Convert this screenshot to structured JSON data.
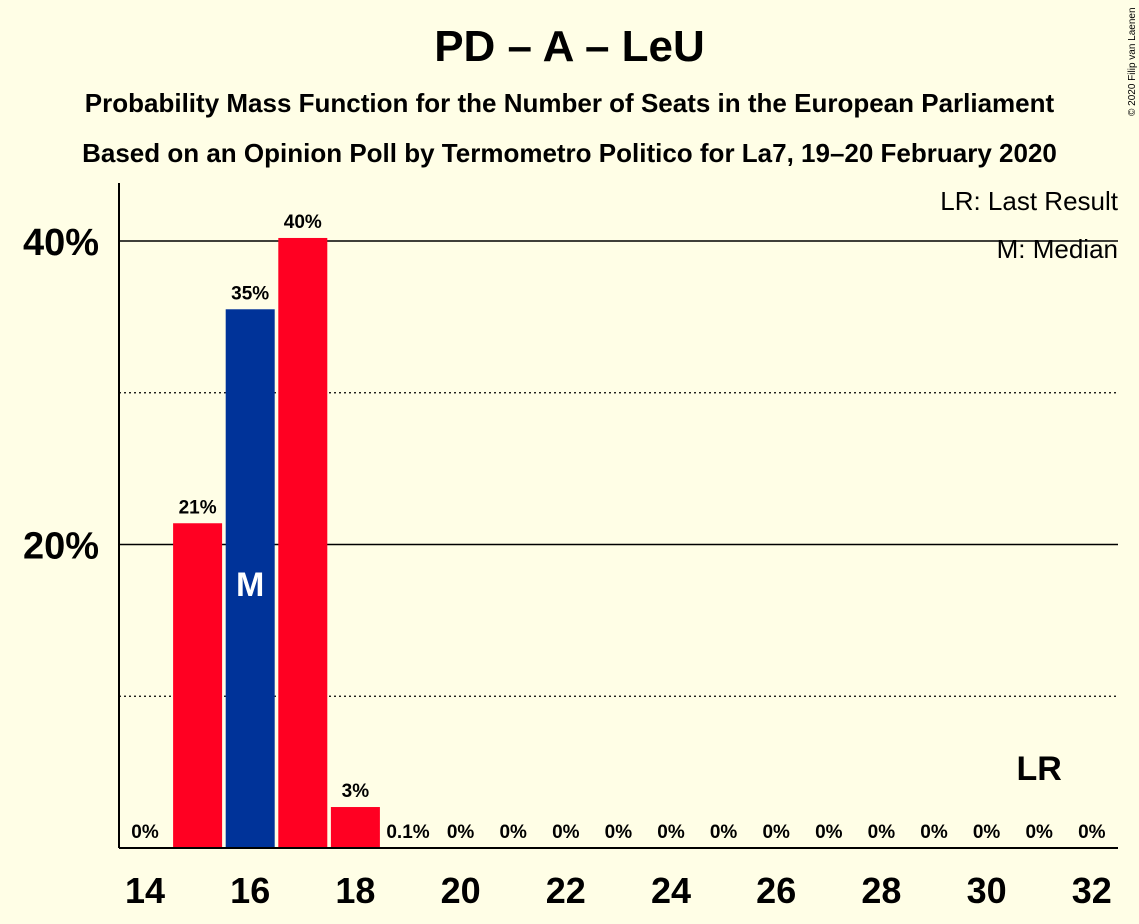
{
  "title": "PD – A – LeU",
  "subtitle1": "Probability Mass Function for the Number of Seats in the European Parliament",
  "subtitle2": "Based on an Opinion Poll by Termometro Politico for La7, 19–20 February 2020",
  "copyright": "© 2020 Filip van Laenen",
  "legend": {
    "lr": "LR: Last Result",
    "median": "M: Median"
  },
  "colors": {
    "background": "#FFFEE6",
    "primary": "#FF0022",
    "median": "#003399",
    "text": "#000000"
  },
  "chart_data": {
    "type": "bar",
    "xlim": [
      14,
      32
    ],
    "ylim": [
      0,
      0.44
    ],
    "x_ticks": [
      14,
      16,
      18,
      20,
      22,
      24,
      26,
      28,
      30,
      32
    ],
    "y_ticks": [
      {
        "value": 0.2,
        "label": "20%"
      },
      {
        "value": 0.4,
        "label": "40%"
      }
    ],
    "minor_grid": [
      0.1,
      0.3
    ],
    "bars": [
      {
        "seats": 14,
        "value": 0.0,
        "label": "0%"
      },
      {
        "seats": 15,
        "value": 0.214,
        "label": "21%"
      },
      {
        "seats": 16,
        "value": 0.355,
        "label": "35%",
        "median": true
      },
      {
        "seats": 17,
        "value": 0.402,
        "label": "40%"
      },
      {
        "seats": 18,
        "value": 0.027,
        "label": "3%"
      },
      {
        "seats": 19,
        "value": 0.001,
        "label": "0.1%"
      },
      {
        "seats": 20,
        "value": 0.0,
        "label": "0%"
      },
      {
        "seats": 21,
        "value": 0.0,
        "label": "0%"
      },
      {
        "seats": 22,
        "value": 0.0,
        "label": "0%"
      },
      {
        "seats": 23,
        "value": 0.0,
        "label": "0%"
      },
      {
        "seats": 24,
        "value": 0.0,
        "label": "0%"
      },
      {
        "seats": 25,
        "value": 0.0,
        "label": "0%"
      },
      {
        "seats": 26,
        "value": 0.0,
        "label": "0%"
      },
      {
        "seats": 27,
        "value": 0.0,
        "label": "0%"
      },
      {
        "seats": 28,
        "value": 0.0,
        "label": "0%"
      },
      {
        "seats": 29,
        "value": 0.0,
        "label": "0%"
      },
      {
        "seats": 30,
        "value": 0.0,
        "label": "0%"
      },
      {
        "seats": 31,
        "value": 0.0,
        "label": "0%"
      },
      {
        "seats": 32,
        "value": 0.0,
        "label": "0%"
      }
    ],
    "median_seats": 16,
    "median_marker": "M",
    "last_result_seats": 31,
    "last_result_marker": "LR"
  }
}
